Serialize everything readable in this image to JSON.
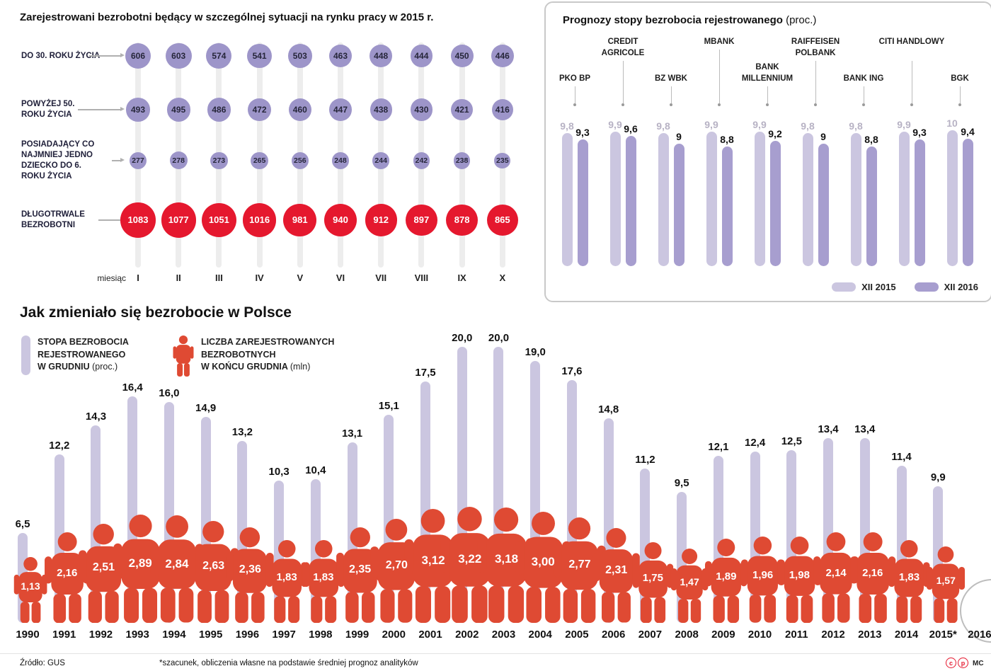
{
  "colors": {
    "purple_dot": "#9d95c9",
    "red": "#e5182e",
    "bar_light": "#cbc6e0",
    "bar_dark": "#a79ecf",
    "person_red": "#df4a33",
    "value_gray": "#b7b2c4",
    "text_dark": "#111111"
  },
  "page": {
    "footer": {
      "source": "Źródło: GUS",
      "note": "*szacunek, obliczenia własne na podstawie średniej prognoz analityków",
      "credit": "MC",
      "license_letters": [
        "c",
        "p"
      ]
    }
  },
  "chart_data": [
    {
      "id": "special-situation",
      "type": "dot-matrix",
      "title": "Zarejestrowani bezrobotni będący w szczególnej sytuacji na rynku pracy w 2015 r.",
      "x_axis_label": "miesiąc",
      "categories": [
        "I",
        "II",
        "III",
        "IV",
        "V",
        "VI",
        "VII",
        "VIII",
        "IX",
        "X"
      ],
      "series": [
        {
          "name": "DO 30. ROKU ŻYCIA",
          "color": "#9d95c9",
          "text_color": "#26263a",
          "values": [
            606,
            603,
            574,
            541,
            503,
            463,
            448,
            444,
            450,
            446
          ]
        },
        {
          "name": "POWYŻEJ 50. ROKU ŻYCIA",
          "color": "#9d95c9",
          "text_color": "#26263a",
          "values": [
            493,
            495,
            486,
            472,
            460,
            447,
            438,
            430,
            421,
            416
          ]
        },
        {
          "name": "POSIADAJĄCY CO NAJMNIEJ JEDNO DZIECKO DO 6. ROKU ŻYCIA",
          "color": "#9d95c9",
          "text_color": "#26263a",
          "values": [
            277,
            278,
            273,
            265,
            256,
            248,
            244,
            242,
            238,
            235
          ]
        },
        {
          "name": "DŁUGOTRWALE BEZROBOTNI",
          "color": "#e5182e",
          "text_color": "#ffffff",
          "values": [
            1083,
            1077,
            1051,
            1016,
            981,
            940,
            912,
            897,
            878,
            865
          ]
        }
      ]
    },
    {
      "id": "forecast",
      "type": "bar",
      "title": "Prognozy stopy bezrobocia rejestrowanego",
      "title_suffix": "(proc.)",
      "legend": [
        "XII 2015",
        "XII 2016"
      ],
      "ylim": [
        0,
        10
      ],
      "banks": [
        {
          "name": "PKO BP",
          "xii2015": 9.8,
          "xii2016": 9.3,
          "xii2015_label": "9,8",
          "xii2016_label": "9,3"
        },
        {
          "name": "CREDIT AGRICOLE",
          "xii2015": 9.9,
          "xii2016": 9.6,
          "xii2015_label": "9,9",
          "xii2016_label": "9,6"
        },
        {
          "name": "BZ WBK",
          "xii2015": 9.8,
          "xii2016": 9,
          "xii2015_label": "9,8",
          "xii2016_label": "9"
        },
        {
          "name": "MBANK",
          "xii2015": 9.9,
          "xii2016": 8.8,
          "xii2015_label": "9,9",
          "xii2016_label": "8,8"
        },
        {
          "name": "BANK MILLENNIUM",
          "xii2015": 9.9,
          "xii2016": 9.2,
          "xii2015_label": "9,9",
          "xii2016_label": "9,2"
        },
        {
          "name": "RAIFFEISEN POLBANK",
          "xii2015": 9.8,
          "xii2016": 9,
          "xii2015_label": "9,8",
          "xii2016_label": "9"
        },
        {
          "name": "BANK ING",
          "xii2015": 9.8,
          "xii2016": 8.8,
          "xii2015_label": "9,8",
          "xii2016_label": "8,8"
        },
        {
          "name": "CITI HANDLOWY",
          "xii2015": 9.9,
          "xii2016": 9.3,
          "xii2015_label": "9,9",
          "xii2016_label": "9,3"
        },
        {
          "name": "BGK",
          "xii2015": 10,
          "xii2016": 9.4,
          "xii2015_label": "10",
          "xii2016_label": "9,4"
        }
      ]
    },
    {
      "id": "history",
      "type": "bar-pictogram",
      "title": "Jak zmieniało się bezrobocie w Polsce",
      "legend": [
        {
          "icon": "bar-icon",
          "lines": [
            "STOPA BEZROBOCIA",
            "REJESTROWANEGO",
            "W GRUDNIU"
          ],
          "suffix": "(proc.)"
        },
        {
          "icon": "person-icon",
          "lines": [
            "LICZBA ZAREJESTROWANYCH",
            "BEZROBOTNYCH",
            "W KOŃCU GRUDNIA"
          ],
          "suffix": "(mln)"
        }
      ],
      "points": [
        {
          "year": "1990",
          "rate": 6.5,
          "rate_label": "6,5",
          "count": 1.13,
          "count_label": "1,13"
        },
        {
          "year": "1991",
          "rate": 12.2,
          "rate_label": "12,2",
          "count": 2.16,
          "count_label": "2,16"
        },
        {
          "year": "1992",
          "rate": 14.3,
          "rate_label": "14,3",
          "count": 2.51,
          "count_label": "2,51"
        },
        {
          "year": "1993",
          "rate": 16.4,
          "rate_label": "16,4",
          "count": 2.89,
          "count_label": "2,89"
        },
        {
          "year": "1994",
          "rate": 16.0,
          "rate_label": "16,0",
          "count": 2.84,
          "count_label": "2,84"
        },
        {
          "year": "1995",
          "rate": 14.9,
          "rate_label": "14,9",
          "count": 2.63,
          "count_label": "2,63"
        },
        {
          "year": "1996",
          "rate": 13.2,
          "rate_label": "13,2",
          "count": 2.36,
          "count_label": "2,36"
        },
        {
          "year": "1997",
          "rate": 10.3,
          "rate_label": "10,3",
          "count": 1.83,
          "count_label": "1,83"
        },
        {
          "year": "1998",
          "rate": 10.4,
          "rate_label": "10,4",
          "count": 1.83,
          "count_label": "1,83"
        },
        {
          "year": "1999",
          "rate": 13.1,
          "rate_label": "13,1",
          "count": 2.35,
          "count_label": "2,35"
        },
        {
          "year": "2000",
          "rate": 15.1,
          "rate_label": "15,1",
          "count": 2.7,
          "count_label": "2,70"
        },
        {
          "year": "2001",
          "rate": 17.5,
          "rate_label": "17,5",
          "count": 3.12,
          "count_label": "3,12"
        },
        {
          "year": "2002",
          "rate": 20.0,
          "rate_label": "20,0",
          "count": 3.22,
          "count_label": "3,22"
        },
        {
          "year": "2003",
          "rate": 20.0,
          "rate_label": "20,0",
          "count": 3.18,
          "count_label": "3,18"
        },
        {
          "year": "2004",
          "rate": 19.0,
          "rate_label": "19,0",
          "count": 3.0,
          "count_label": "3,00"
        },
        {
          "year": "2005",
          "rate": 17.6,
          "rate_label": "17,6",
          "count": 2.77,
          "count_label": "2,77"
        },
        {
          "year": "2006",
          "rate": 14.8,
          "rate_label": "14,8",
          "count": 2.31,
          "count_label": "2,31"
        },
        {
          "year": "2007",
          "rate": 11.2,
          "rate_label": "11,2",
          "count": 1.75,
          "count_label": "1,75"
        },
        {
          "year": "2008",
          "rate": 9.5,
          "rate_label": "9,5",
          "count": 1.47,
          "count_label": "1,47"
        },
        {
          "year": "2009",
          "rate": 12.1,
          "rate_label": "12,1",
          "count": 1.89,
          "count_label": "1,89"
        },
        {
          "year": "2010",
          "rate": 12.4,
          "rate_label": "12,4",
          "count": 1.96,
          "count_label": "1,96"
        },
        {
          "year": "2011",
          "rate": 12.5,
          "rate_label": "12,5",
          "count": 1.98,
          "count_label": "1,98"
        },
        {
          "year": "2012",
          "rate": 13.4,
          "rate_label": "13,4",
          "count": 2.14,
          "count_label": "2,14"
        },
        {
          "year": "2013",
          "rate": 13.4,
          "rate_label": "13,4",
          "count": 2.16,
          "count_label": "2,16"
        },
        {
          "year": "2014",
          "rate": 11.4,
          "rate_label": "11,4",
          "count": 1.83,
          "count_label": "1,83"
        },
        {
          "year": "2015*",
          "rate": 9.9,
          "rate_label": "9,9",
          "count": 1.57,
          "count_label": "1,57"
        },
        {
          "year": "2016",
          "rate": null,
          "rate_label": "",
          "count": null,
          "count_label": ""
        }
      ]
    }
  ]
}
